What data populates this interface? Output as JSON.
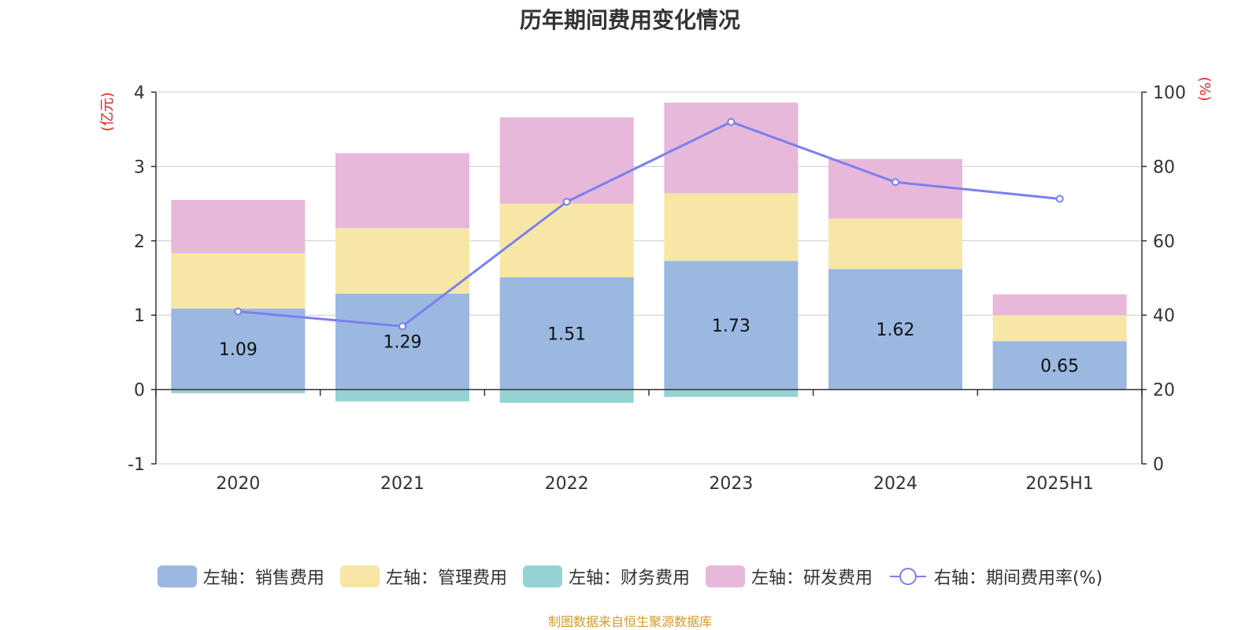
{
  "chart_data": {
    "type": "bar",
    "title": "历年期间费用变化情况",
    "categories": [
      "2020",
      "2021",
      "2022",
      "2023",
      "2024",
      "2025H1"
    ],
    "y_left": {
      "label": "(亿元)",
      "ylim": [
        -1,
        4
      ],
      "ticks": [
        "4",
        "3",
        "2",
        "1",
        "0",
        "-1"
      ]
    },
    "y_right": {
      "label": "(%)",
      "ylim": [
        0,
        100
      ],
      "ticks": [
        "100",
        "80",
        "60",
        "40",
        "20",
        "0"
      ]
    },
    "series": [
      {
        "name": "左轴：销售费用",
        "axis": "left",
        "type": "bar",
        "color": "#9bb8e1",
        "values": [
          1.09,
          1.29,
          1.51,
          1.73,
          1.62,
          0.65
        ],
        "labels": [
          "1.09",
          "1.29",
          "1.51",
          "1.73",
          "1.62",
          "0.65"
        ]
      },
      {
        "name": "左轴：管理费用",
        "axis": "left",
        "type": "bar",
        "color": "#f7e7a7",
        "values": [
          0.74,
          0.88,
          0.99,
          0.91,
          0.68,
          0.35
        ]
      },
      {
        "name": "左轴：财务费用",
        "axis": "left",
        "type": "bar",
        "color": "#94d3d4",
        "values": [
          -0.05,
          -0.16,
          -0.18,
          -0.1,
          -0.01,
          -0.01
        ]
      },
      {
        "name": "左轴：研发费用",
        "axis": "left",
        "type": "bar",
        "color": "#e7b8da",
        "values": [
          0.72,
          1.01,
          1.16,
          1.22,
          0.8,
          0.28
        ]
      },
      {
        "name": "右轴：期间费用率(%)",
        "axis": "right",
        "type": "line",
        "color": "#7b80ee",
        "values": [
          41.0,
          37.0,
          70.5,
          92.0,
          75.8,
          71.3
        ]
      }
    ],
    "grid": true,
    "legend_position": "bottom"
  },
  "source_note": "制图数据来自恒生聚源数据库"
}
